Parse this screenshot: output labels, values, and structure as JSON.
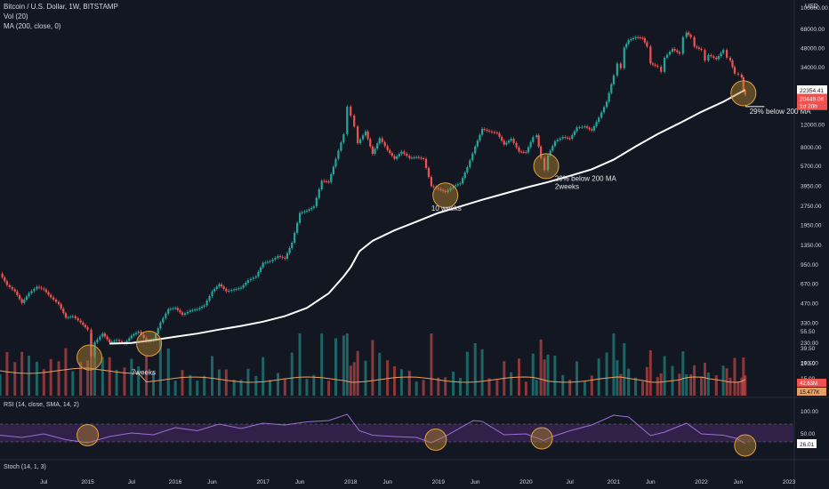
{
  "header": {
    "symbol": "Bitcoin / U.S. Dollar, 1W, BITSTAMP",
    "vol": "Vol (20)",
    "ma": "MA (200, close, 0)",
    "currency": "USD"
  },
  "panes": {
    "rsi_label": "RSI (14, close, SMA, 14, 2)",
    "stoch_label": "Stoch (14, 1, 3)"
  },
  "colors": {
    "background": "#131722",
    "up": "#26a69a",
    "down": "#ef5350",
    "ma_line": "#ffffff",
    "circle_fill": "#b8862e",
    "circle_stroke": "#e0a040",
    "rsi_line": "#9c6fd6",
    "rsi_band": "#4a2a6a",
    "vol_ma": "#e8a060"
  },
  "chart_data": {
    "type": "line",
    "title": "Bitcoin / U.S. Dollar, 1W, BITSTAMP",
    "y_scale": "log",
    "ylim": [
      95,
      100000
    ],
    "y_ticks": [
      "100000.00",
      "68000.00",
      "48000.00",
      "34000.00",
      "12000.00",
      "8000.00",
      "5700.00",
      "3950.00",
      "2750.00",
      "1950.00",
      "1350.00",
      "950.00",
      "670.00",
      "470.00",
      "330.00",
      "230.00",
      "160.00",
      "110.00"
    ],
    "price_markers": [
      {
        "label": "22354.41",
        "value": 22354.41,
        "color": "#ffffff",
        "text_color": "#131722"
      },
      {
        "label": "20449.06",
        "value": 19200,
        "color": "#ef5350",
        "text_color": "#ffffff"
      },
      {
        "label": "1d 20h",
        "value": 16800,
        "color": "#ef5350",
        "text_color": "#ffffff"
      }
    ],
    "x_labels": [
      "Jul",
      "2015",
      "Jul",
      "2016",
      "Jun",
      "2017",
      "Jun",
      "2018",
      "Jun",
      "2019",
      "Jun",
      "2020",
      "Jul",
      "2021",
      "Jun",
      "2022",
      "Jun",
      "2023"
    ],
    "x_label_dates": [
      2014.5,
      2015.0,
      2015.5,
      2016.0,
      2016.42,
      2017.0,
      2017.42,
      2018.0,
      2018.42,
      2019.0,
      2019.42,
      2020.0,
      2020.5,
      2021.0,
      2021.42,
      2022.0,
      2022.42,
      2023.0
    ],
    "series": [
      {
        "name": "BTCUSD",
        "points": [
          [
            2014.0,
            800
          ],
          [
            2014.08,
            650
          ],
          [
            2014.17,
            580
          ],
          [
            2014.25,
            470
          ],
          [
            2014.33,
            560
          ],
          [
            2014.42,
            630
          ],
          [
            2014.5,
            600
          ],
          [
            2014.58,
            520
          ],
          [
            2014.67,
            460
          ],
          [
            2014.75,
            360
          ],
          [
            2014.83,
            370
          ],
          [
            2014.92,
            330
          ],
          [
            2015.0,
            290
          ],
          [
            2015.04,
            180
          ],
          [
            2015.08,
            230
          ],
          [
            2015.17,
            270
          ],
          [
            2015.25,
            230
          ],
          [
            2015.33,
            240
          ],
          [
            2015.42,
            225
          ],
          [
            2015.5,
            260
          ],
          [
            2015.58,
            280
          ],
          [
            2015.67,
            235
          ],
          [
            2015.75,
            240
          ],
          [
            2015.83,
            330
          ],
          [
            2015.92,
            420
          ],
          [
            2016.0,
            430
          ],
          [
            2016.08,
            380
          ],
          [
            2016.17,
            410
          ],
          [
            2016.25,
            420
          ],
          [
            2016.33,
            450
          ],
          [
            2016.42,
            580
          ],
          [
            2016.5,
            660
          ],
          [
            2016.58,
            580
          ],
          [
            2016.67,
            600
          ],
          [
            2016.75,
            620
          ],
          [
            2016.83,
            710
          ],
          [
            2016.92,
            760
          ],
          [
            2017.0,
            970
          ],
          [
            2017.08,
            1000
          ],
          [
            2017.17,
            1100
          ],
          [
            2017.25,
            1050
          ],
          [
            2017.33,
            1400
          ],
          [
            2017.42,
            2400
          ],
          [
            2017.5,
            2500
          ],
          [
            2017.58,
            2700
          ],
          [
            2017.67,
            4300
          ],
          [
            2017.75,
            4200
          ],
          [
            2017.83,
            6400
          ],
          [
            2017.92,
            10000
          ],
          [
            2017.96,
            16500
          ],
          [
            2018.0,
            14000
          ],
          [
            2018.04,
            11500
          ],
          [
            2018.08,
            8500
          ],
          [
            2018.17,
            10500
          ],
          [
            2018.25,
            7000
          ],
          [
            2018.33,
            9300
          ],
          [
            2018.42,
            7500
          ],
          [
            2018.5,
            6400
          ],
          [
            2018.58,
            7300
          ],
          [
            2018.67,
            6500
          ],
          [
            2018.75,
            6600
          ],
          [
            2018.83,
            6400
          ],
          [
            2018.92,
            3900
          ],
          [
            2019.0,
            3700
          ],
          [
            2019.08,
            3500
          ],
          [
            2019.17,
            3900
          ],
          [
            2019.25,
            4100
          ],
          [
            2019.33,
            5500
          ],
          [
            2019.42,
            8000
          ],
          [
            2019.5,
            11000
          ],
          [
            2019.58,
            10500
          ],
          [
            2019.67,
            10200
          ],
          [
            2019.75,
            8300
          ],
          [
            2019.83,
            9200
          ],
          [
            2019.92,
            7300
          ],
          [
            2020.0,
            7200
          ],
          [
            2020.08,
            9500
          ],
          [
            2020.12,
            9800
          ],
          [
            2020.17,
            6500
          ],
          [
            2020.21,
            5200
          ],
          [
            2020.25,
            6800
          ],
          [
            2020.33,
            8800
          ],
          [
            2020.42,
            9500
          ],
          [
            2020.5,
            9200
          ],
          [
            2020.58,
            11300
          ],
          [
            2020.67,
            11500
          ],
          [
            2020.75,
            10700
          ],
          [
            2020.83,
            13500
          ],
          [
            2020.92,
            18000
          ],
          [
            2021.0,
            29000
          ],
          [
            2021.04,
            36000
          ],
          [
            2021.08,
            33000
          ],
          [
            2021.12,
            48000
          ],
          [
            2021.17,
            55000
          ],
          [
            2021.25,
            58000
          ],
          [
            2021.33,
            57000
          ],
          [
            2021.38,
            49000
          ],
          [
            2021.42,
            36000
          ],
          [
            2021.5,
            34000
          ],
          [
            2021.54,
            31000
          ],
          [
            2021.58,
            40000
          ],
          [
            2021.67,
            47000
          ],
          [
            2021.75,
            43000
          ],
          [
            2021.79,
            58000
          ],
          [
            2021.83,
            63000
          ],
          [
            2021.88,
            58000
          ],
          [
            2021.92,
            49000
          ],
          [
            2022.0,
            46000
          ],
          [
            2022.04,
            38000
          ],
          [
            2022.08,
            42000
          ],
          [
            2022.17,
            39000
          ],
          [
            2022.25,
            46000
          ],
          [
            2022.29,
            40000
          ],
          [
            2022.33,
            38000
          ],
          [
            2022.38,
            30000
          ],
          [
            2022.42,
            29500
          ],
          [
            2022.46,
            28000
          ],
          [
            2022.48,
            22000
          ],
          [
            2022.5,
            20449.06
          ]
        ]
      },
      {
        "name": "MA (200, close, 0)",
        "points": [
          [
            2015.25,
            225
          ],
          [
            2015.5,
            228
          ],
          [
            2015.75,
            240
          ],
          [
            2016.0,
            255
          ],
          [
            2016.25,
            270
          ],
          [
            2016.5,
            290
          ],
          [
            2016.75,
            310
          ],
          [
            2017.0,
            335
          ],
          [
            2017.25,
            370
          ],
          [
            2017.5,
            430
          ],
          [
            2017.75,
            560
          ],
          [
            2017.92,
            760
          ],
          [
            2018.0,
            900
          ],
          [
            2018.1,
            1200
          ],
          [
            2018.25,
            1450
          ],
          [
            2018.5,
            1750
          ],
          [
            2018.75,
            2050
          ],
          [
            2019.0,
            2400
          ],
          [
            2019.25,
            2700
          ],
          [
            2019.5,
            3050
          ],
          [
            2019.75,
            3400
          ],
          [
            2020.0,
            3800
          ],
          [
            2020.25,
            4200
          ],
          [
            2020.5,
            4700
          ],
          [
            2020.75,
            5300
          ],
          [
            2021.0,
            6300
          ],
          [
            2021.25,
            8000
          ],
          [
            2021.5,
            10000
          ],
          [
            2021.75,
            12200
          ],
          [
            2022.0,
            15000
          ],
          [
            2022.25,
            18000
          ],
          [
            2022.5,
            22354.41
          ]
        ]
      }
    ],
    "annotations": [
      {
        "text": "7weeks",
        "x": 2015.5,
        "y": 128
      },
      {
        "text": "10 weeks",
        "x": 2018.92,
        "y": 2500
      },
      {
        "text": "29% below 200 MA",
        "x": 2020.33,
        "y": 4300
      },
      {
        "text": "2weeks",
        "x": 2020.33,
        "y": 3700
      },
      {
        "text": "29% below 200 MA",
        "x": 2022.55,
        "y": 14500
      }
    ],
    "circles": [
      {
        "x": 2015.02,
        "y": 175
      },
      {
        "x": 2015.7,
        "y": 225
      },
      {
        "x": 2019.08,
        "y": 3300
      },
      {
        "x": 2020.23,
        "y": 5600
      },
      {
        "x": 2022.48,
        "y": 21000
      }
    ],
    "volume": {
      "ticks": [
        "55.50",
        "39.50",
        "27.50",
        "15.00"
      ],
      "last_label": "42.63M",
      "last_label2": "15.477K"
    },
    "rsi": {
      "ticks": [
        "100.00",
        "50.00"
      ],
      "ylim": [
        0,
        100
      ],
      "last_label": "26.01",
      "upper_band": 70,
      "lower_band": 30,
      "points": [
        [
          2014.0,
          45
        ],
        [
          2014.25,
          40
        ],
        [
          2014.5,
          48
        ],
        [
          2014.75,
          35
        ],
        [
          2015.0,
          28
        ],
        [
          2015.25,
          42
        ],
        [
          2015.5,
          50
        ],
        [
          2015.75,
          46
        ],
        [
          2016.0,
          62
        ],
        [
          2016.25,
          55
        ],
        [
          2016.5,
          70
        ],
        [
          2016.75,
          60
        ],
        [
          2017.0,
          72
        ],
        [
          2017.25,
          68
        ],
        [
          2017.5,
          75
        ],
        [
          2017.75,
          78
        ],
        [
          2017.96,
          92
        ],
        [
          2018.1,
          55
        ],
        [
          2018.25,
          45
        ],
        [
          2018.5,
          42
        ],
        [
          2018.75,
          40
        ],
        [
          2018.92,
          28
        ],
        [
          2019.1,
          45
        ],
        [
          2019.4,
          78
        ],
        [
          2019.5,
          76
        ],
        [
          2019.75,
          46
        ],
        [
          2020.0,
          48
        ],
        [
          2020.2,
          33
        ],
        [
          2020.3,
          42
        ],
        [
          2020.5,
          55
        ],
        [
          2020.75,
          68
        ],
        [
          2021.0,
          90
        ],
        [
          2021.17,
          86
        ],
        [
          2021.42,
          44
        ],
        [
          2021.58,
          52
        ],
        [
          2021.83,
          72
        ],
        [
          2022.0,
          48
        ],
        [
          2022.25,
          45
        ],
        [
          2022.4,
          38
        ],
        [
          2022.5,
          26.01
        ]
      ],
      "circles": [
        {
          "x": 2015.0,
          "y": 45
        },
        {
          "x": 2018.97,
          "y": 35
        },
        {
          "x": 2020.18,
          "y": 38
        },
        {
          "x": 2022.5,
          "y": 22
        }
      ]
    }
  }
}
